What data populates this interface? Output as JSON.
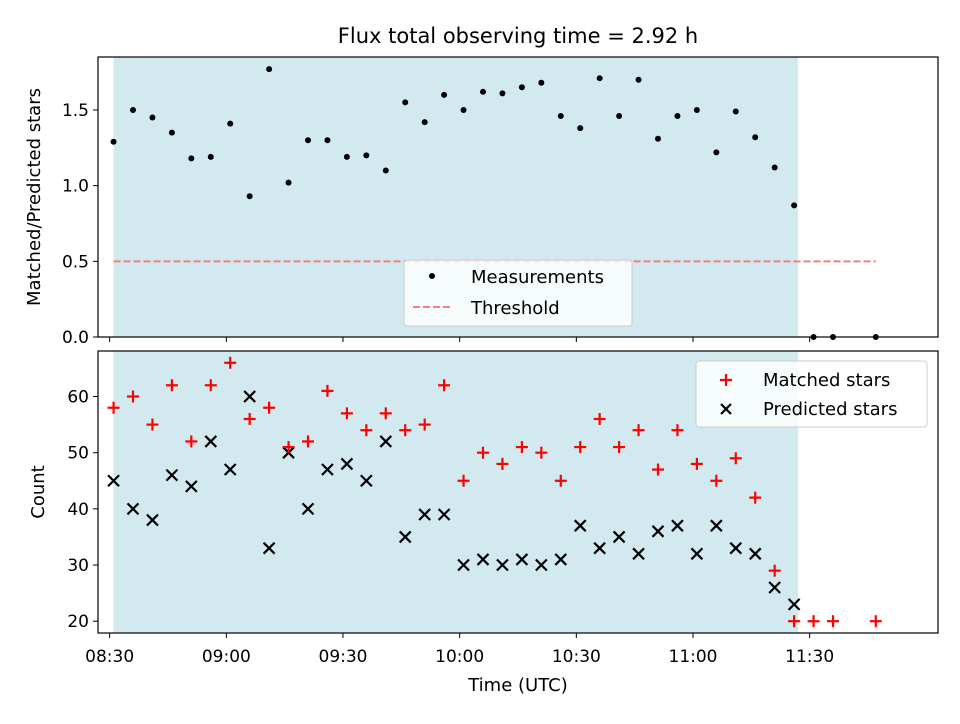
{
  "chart_data": [
    {
      "type": "scatter",
      "title": "Flux total observing time = 2.92 h",
      "xlabel": "",
      "ylabel": "Matched/Predicted stars",
      "ylim": [
        0,
        1.85
      ],
      "xlim_minutes_utc": [
        507,
        723
      ],
      "yticks": [
        0.0,
        0.5,
        1.0,
        1.5
      ],
      "ytick_labels": [
        "0.0",
        "0.5",
        "1.0",
        "1.5"
      ],
      "grid": false,
      "legend": "bottom-center",
      "observing_window": [
        "08:31",
        "11:27"
      ],
      "threshold": {
        "name": "Threshold",
        "value": 0.5,
        "x_range": [
          "08:31",
          "11:47"
        ],
        "color": "#f08080"
      },
      "series": [
        {
          "name": "Measurements",
          "color": "#000000",
          "x": [
            "08:31",
            "08:36",
            "08:41",
            "08:46",
            "08:51",
            "08:56",
            "09:01",
            "09:06",
            "09:11",
            "09:16",
            "09:21",
            "09:26",
            "09:31",
            "09:36",
            "09:41",
            "09:46",
            "09:51",
            "09:56",
            "10:01",
            "10:06",
            "10:11",
            "10:16",
            "10:21",
            "10:26",
            "10:31",
            "10:36",
            "10:41",
            "10:46",
            "10:51",
            "10:56",
            "11:01",
            "11:06",
            "11:11",
            "11:16",
            "11:21",
            "11:26",
            "11:31",
            "11:36",
            "11:47"
          ],
          "y": [
            1.29,
            1.5,
            1.45,
            1.35,
            1.18,
            1.19,
            1.41,
            0.93,
            1.77,
            1.02,
            1.3,
            1.3,
            1.19,
            1.2,
            1.1,
            1.55,
            1.42,
            1.6,
            1.5,
            1.62,
            1.61,
            1.65,
            1.68,
            1.46,
            1.38,
            1.71,
            1.46,
            1.7,
            1.31,
            1.46,
            1.5,
            1.22,
            1.49,
            1.32,
            1.12,
            0.87,
            0.0,
            0.0,
            0.0
          ]
        }
      ]
    },
    {
      "type": "scatter",
      "title": "",
      "xlabel": "Time (UTC)",
      "ylabel": "Count",
      "ylim": [
        17.9,
        68.1
      ],
      "xlim_minutes_utc": [
        507,
        723
      ],
      "xticks": [
        "08:30",
        "09:00",
        "09:30",
        "10:00",
        "10:30",
        "11:00",
        "11:30"
      ],
      "yticks": [
        20,
        30,
        40,
        50,
        60
      ],
      "ytick_labels": [
        "20",
        "30",
        "40",
        "50",
        "60"
      ],
      "grid": false,
      "legend": "top-right",
      "observing_window": [
        "08:31",
        "11:27"
      ],
      "series": [
        {
          "name": "Matched stars",
          "marker": "plus",
          "color": "#ff0000",
          "x": [
            "08:31",
            "08:36",
            "08:41",
            "08:46",
            "08:51",
            "08:56",
            "09:01",
            "09:06",
            "09:11",
            "09:16",
            "09:21",
            "09:26",
            "09:31",
            "09:36",
            "09:41",
            "09:46",
            "09:51",
            "09:56",
            "10:01",
            "10:06",
            "10:11",
            "10:16",
            "10:21",
            "10:26",
            "10:31",
            "10:36",
            "10:41",
            "10:46",
            "10:51",
            "10:56",
            "11:01",
            "11:06",
            "11:11",
            "11:16",
            "11:21",
            "11:26",
            "11:31",
            "11:36",
            "11:47"
          ],
          "y": [
            58,
            60,
            55,
            62,
            52,
            62,
            66,
            56,
            58,
            51,
            52,
            61,
            57,
            54,
            57,
            54,
            55,
            62,
            45,
            50,
            48,
            51,
            50,
            45,
            51,
            56,
            51,
            54,
            47,
            54,
            48,
            45,
            49,
            42,
            29,
            20,
            20,
            20,
            20
          ]
        },
        {
          "name": "Predicted stars",
          "marker": "x",
          "color": "#000000",
          "x": [
            "08:31",
            "08:36",
            "08:41",
            "08:46",
            "08:51",
            "08:56",
            "09:01",
            "09:06",
            "09:11",
            "09:16",
            "09:21",
            "09:26",
            "09:31",
            "09:36",
            "09:41",
            "09:46",
            "09:51",
            "09:56",
            "10:01",
            "10:06",
            "10:11",
            "10:16",
            "10:21",
            "10:26",
            "10:31",
            "10:36",
            "10:41",
            "10:46",
            "10:51",
            "10:56",
            "11:01",
            "11:06",
            "11:11",
            "11:16",
            "11:21",
            "11:26"
          ],
          "y": [
            45,
            40,
            38,
            46,
            44,
            52,
            47,
            60,
            33,
            50,
            40,
            47,
            48,
            45,
            52,
            35,
            39,
            39,
            30,
            31,
            30,
            31,
            30,
            31,
            37,
            33,
            35,
            32,
            36,
            37,
            32,
            37,
            33,
            32,
            26,
            23
          ]
        }
      ]
    }
  ],
  "colors": {
    "window": "#d3e9f0",
    "window_edge": "#b9dde8"
  }
}
